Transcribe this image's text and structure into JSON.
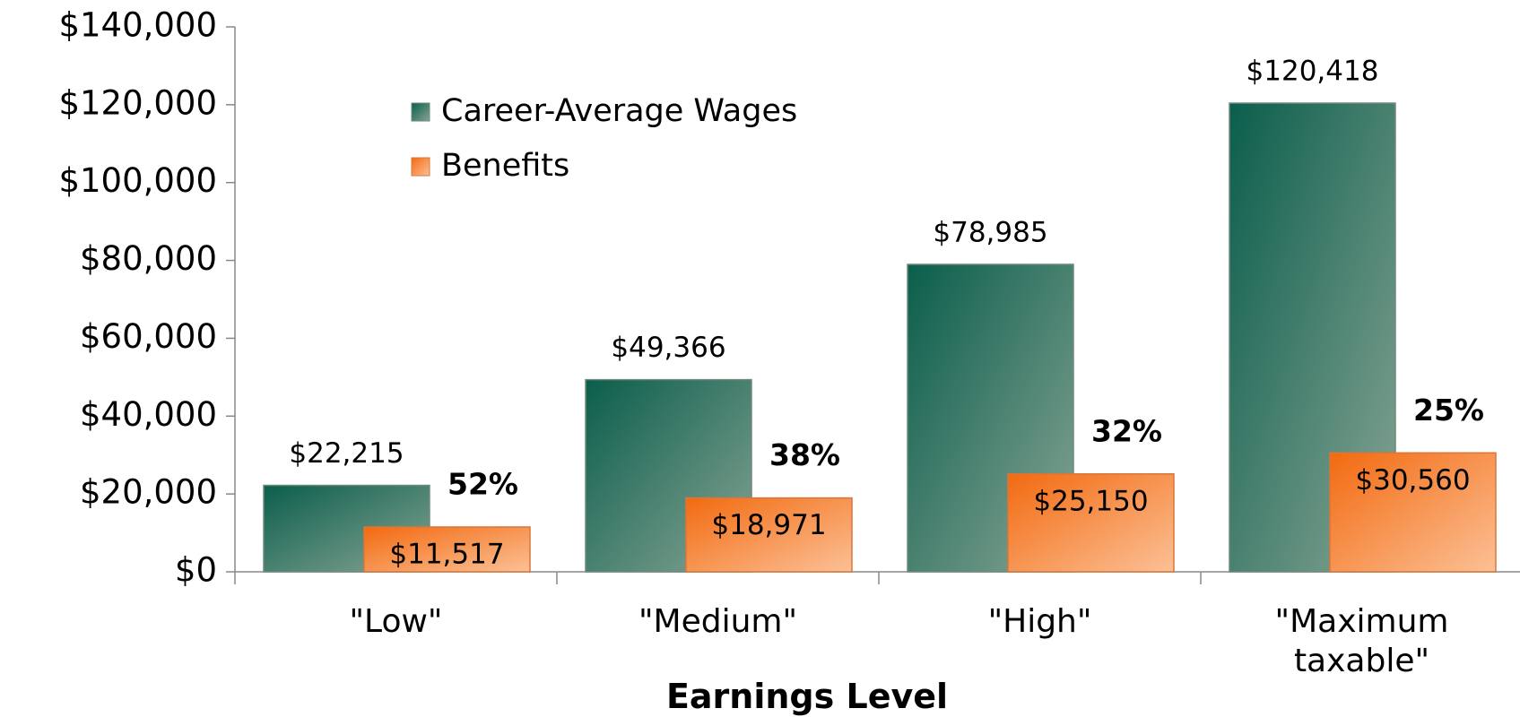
{
  "chart_data": {
    "type": "bar",
    "x_label": "Earnings Level",
    "categories": [
      "\"Low\"",
      "\"Medium\"",
      "\"High\"",
      "\"Maximum taxable\""
    ],
    "series": [
      {
        "name": "Career-Average Wages",
        "color": "#0b5e4c",
        "values": [
          22215,
          49366,
          78985,
          120418
        ],
        "value_labels": [
          "$22,215",
          "$49,366",
          "$78,985",
          "$120,418"
        ]
      },
      {
        "name": "Benefits",
        "color": "#f26a10",
        "values": [
          11517,
          18971,
          25150,
          30560
        ],
        "value_labels": [
          "$11,517",
          "$18,971",
          "$25,150",
          "$30,560"
        ]
      }
    ],
    "annotations": [
      "52%",
      "38%",
      "32%",
      "25%"
    ],
    "ylim": [
      0,
      140000
    ],
    "yticks": [
      {
        "value": 0,
        "label": "$0"
      },
      {
        "value": 20000,
        "label": "$20,000"
      },
      {
        "value": 40000,
        "label": "$40,000"
      },
      {
        "value": 60000,
        "label": "$60,000"
      },
      {
        "value": 80000,
        "label": "$80,000"
      },
      {
        "value": 100000,
        "label": "$100,000"
      },
      {
        "value": 120000,
        "label": "$120,000"
      },
      {
        "value": 140000,
        "label": "$140,000"
      }
    ],
    "legend": "upper-left"
  }
}
